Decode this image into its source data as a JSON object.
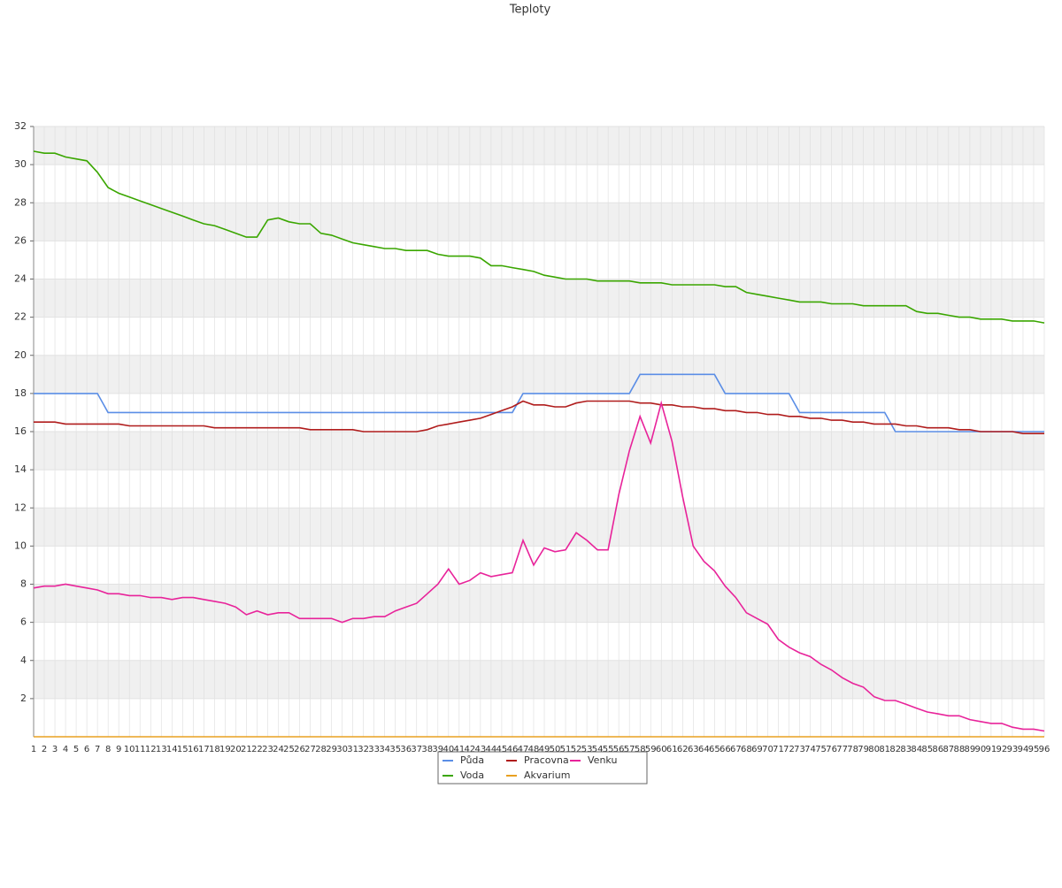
{
  "chart_data": {
    "type": "line",
    "title": "Teploty",
    "categories": [
      1,
      2,
      3,
      4,
      5,
      6,
      7,
      8,
      9,
      10,
      11,
      12,
      13,
      14,
      15,
      16,
      17,
      18,
      19,
      20,
      21,
      22,
      23,
      24,
      25,
      26,
      27,
      28,
      29,
      30,
      31,
      32,
      33,
      34,
      35,
      36,
      37,
      38,
      39,
      40,
      41,
      42,
      43,
      44,
      45,
      46,
      47,
      48,
      49,
      50,
      51,
      52,
      53,
      54,
      55,
      56,
      57,
      58,
      59,
      60,
      61,
      62,
      63,
      64,
      65,
      66,
      67,
      68,
      69,
      70,
      71,
      72,
      73,
      74,
      75,
      76,
      77,
      78,
      79,
      80,
      81,
      82,
      83,
      84,
      85,
      86,
      87,
      88,
      89,
      90,
      91,
      92,
      93,
      94,
      95,
      96
    ],
    "ylim": [
      0,
      32
    ],
    "yticks": [
      2,
      4,
      6,
      8,
      10,
      12,
      14,
      16,
      18,
      20,
      22,
      24,
      26,
      28,
      30,
      32
    ],
    "grid": true,
    "series": [
      {
        "name": "Půda",
        "color": "#5b8ee6",
        "values": [
          18,
          18,
          18,
          18,
          18,
          18,
          18,
          17,
          17,
          17,
          17,
          17,
          17,
          17,
          17,
          17,
          17,
          17,
          17,
          17,
          17,
          17,
          17,
          17,
          17,
          17,
          17,
          17,
          17,
          17,
          17,
          17,
          17,
          17,
          17,
          17,
          17,
          17,
          17,
          17,
          17,
          17,
          17,
          17,
          17,
          17,
          18,
          18,
          18,
          18,
          18,
          18,
          18,
          18,
          18,
          18,
          18,
          19,
          19,
          19,
          19,
          19,
          19,
          19,
          19,
          18,
          18,
          18,
          18,
          18,
          18,
          18,
          17,
          17,
          17,
          17,
          17,
          17,
          17,
          17,
          17,
          16,
          16,
          16,
          16,
          16,
          16,
          16,
          16,
          16,
          16,
          16,
          16,
          16,
          16,
          16
        ]
      },
      {
        "name": "Voda",
        "color": "#3aa600",
        "values": [
          30.7,
          30.6,
          30.6,
          30.4,
          30.3,
          30.2,
          29.6,
          28.8,
          28.5,
          28.3,
          28.1,
          27.9,
          27.7,
          27.5,
          27.3,
          27.1,
          26.9,
          26.8,
          26.6,
          26.4,
          26.2,
          26.2,
          27.1,
          27.2,
          27.0,
          26.9,
          26.9,
          26.4,
          26.3,
          26.1,
          25.9,
          25.8,
          25.7,
          25.6,
          25.6,
          25.5,
          25.5,
          25.5,
          25.3,
          25.2,
          25.2,
          25.2,
          25.1,
          24.7,
          24.7,
          24.6,
          24.5,
          24.4,
          24.2,
          24.1,
          24.0,
          24.0,
          24.0,
          23.9,
          23.9,
          23.9,
          23.9,
          23.8,
          23.8,
          23.8,
          23.7,
          23.7,
          23.7,
          23.7,
          23.7,
          23.6,
          23.6,
          23.3,
          23.2,
          23.1,
          23.0,
          22.9,
          22.8,
          22.8,
          22.8,
          22.7,
          22.7,
          22.7,
          22.6,
          22.6,
          22.6,
          22.6,
          22.6,
          22.3,
          22.2,
          22.2,
          22.1,
          22.0,
          22.0,
          21.9,
          21.9,
          21.9,
          21.8,
          21.8,
          21.8,
          21.7
        ]
      },
      {
        "name": "Pracovna",
        "color": "#b01c1c",
        "values": [
          16.5,
          16.5,
          16.5,
          16.4,
          16.4,
          16.4,
          16.4,
          16.4,
          16.4,
          16.3,
          16.3,
          16.3,
          16.3,
          16.3,
          16.3,
          16.3,
          16.3,
          16.2,
          16.2,
          16.2,
          16.2,
          16.2,
          16.2,
          16.2,
          16.2,
          16.2,
          16.1,
          16.1,
          16.1,
          16.1,
          16.1,
          16.0,
          16.0,
          16.0,
          16.0,
          16.0,
          16.0,
          16.1,
          16.3,
          16.4,
          16.5,
          16.6,
          16.7,
          16.9,
          17.1,
          17.3,
          17.6,
          17.4,
          17.4,
          17.3,
          17.3,
          17.5,
          17.6,
          17.6,
          17.6,
          17.6,
          17.6,
          17.5,
          17.5,
          17.4,
          17.4,
          17.3,
          17.3,
          17.2,
          17.2,
          17.1,
          17.1,
          17.0,
          17.0,
          16.9,
          16.9,
          16.8,
          16.8,
          16.7,
          16.7,
          16.6,
          16.6,
          16.5,
          16.5,
          16.4,
          16.4,
          16.4,
          16.3,
          16.3,
          16.2,
          16.2,
          16.2,
          16.1,
          16.1,
          16.0,
          16.0,
          16.0,
          16.0,
          15.9,
          15.9,
          15.9
        ]
      },
      {
        "name": "Akvarium",
        "color": "#e8a020",
        "values": [
          0,
          0,
          0,
          0,
          0,
          0,
          0,
          0,
          0,
          0,
          0,
          0,
          0,
          0,
          0,
          0,
          0,
          0,
          0,
          0,
          0,
          0,
          0,
          0,
          0,
          0,
          0,
          0,
          0,
          0,
          0,
          0,
          0,
          0,
          0,
          0,
          0,
          0,
          0,
          0,
          0,
          0,
          0,
          0,
          0,
          0,
          0,
          0,
          0,
          0,
          0,
          0,
          0,
          0,
          0,
          0,
          0,
          0,
          0,
          0,
          0,
          0,
          0,
          0,
          0,
          0,
          0,
          0,
          0,
          0,
          0,
          0,
          0,
          0,
          0,
          0,
          0,
          0,
          0,
          0,
          0,
          0,
          0,
          0,
          0,
          0,
          0,
          0,
          0,
          0,
          0,
          0,
          0,
          0,
          0,
          0
        ]
      },
      {
        "name": "Venku",
        "color": "#e8239a",
        "values": [
          7.8,
          7.9,
          7.9,
          8.0,
          7.9,
          7.8,
          7.7,
          7.5,
          7.5,
          7.4,
          7.4,
          7.3,
          7.3,
          7.2,
          7.3,
          7.3,
          7.2,
          7.1,
          7.0,
          6.8,
          6.4,
          6.6,
          6.4,
          6.5,
          6.5,
          6.2,
          6.2,
          6.2,
          6.2,
          6.0,
          6.2,
          6.2,
          6.3,
          6.3,
          6.6,
          6.8,
          7.0,
          7.5,
          8.0,
          8.8,
          8.0,
          8.2,
          8.6,
          8.4,
          8.5,
          8.6,
          10.3,
          9.0,
          9.9,
          9.7,
          9.8,
          10.7,
          10.3,
          9.8,
          9.8,
          12.7,
          15.0,
          16.8,
          15.4,
          17.5,
          15.5,
          12.6,
          10.0,
          9.2,
          8.7,
          7.9,
          7.3,
          6.5,
          6.2,
          5.9,
          5.1,
          4.7,
          4.4,
          4.2,
          3.8,
          3.5,
          3.1,
          2.8,
          2.6,
          2.1,
          1.9,
          1.9,
          1.7,
          1.5,
          1.3,
          1.2,
          1.1,
          1.1,
          0.9,
          0.8,
          0.7,
          0.7,
          0.5,
          0.4,
          0.4,
          0.3
        ]
      }
    ]
  }
}
